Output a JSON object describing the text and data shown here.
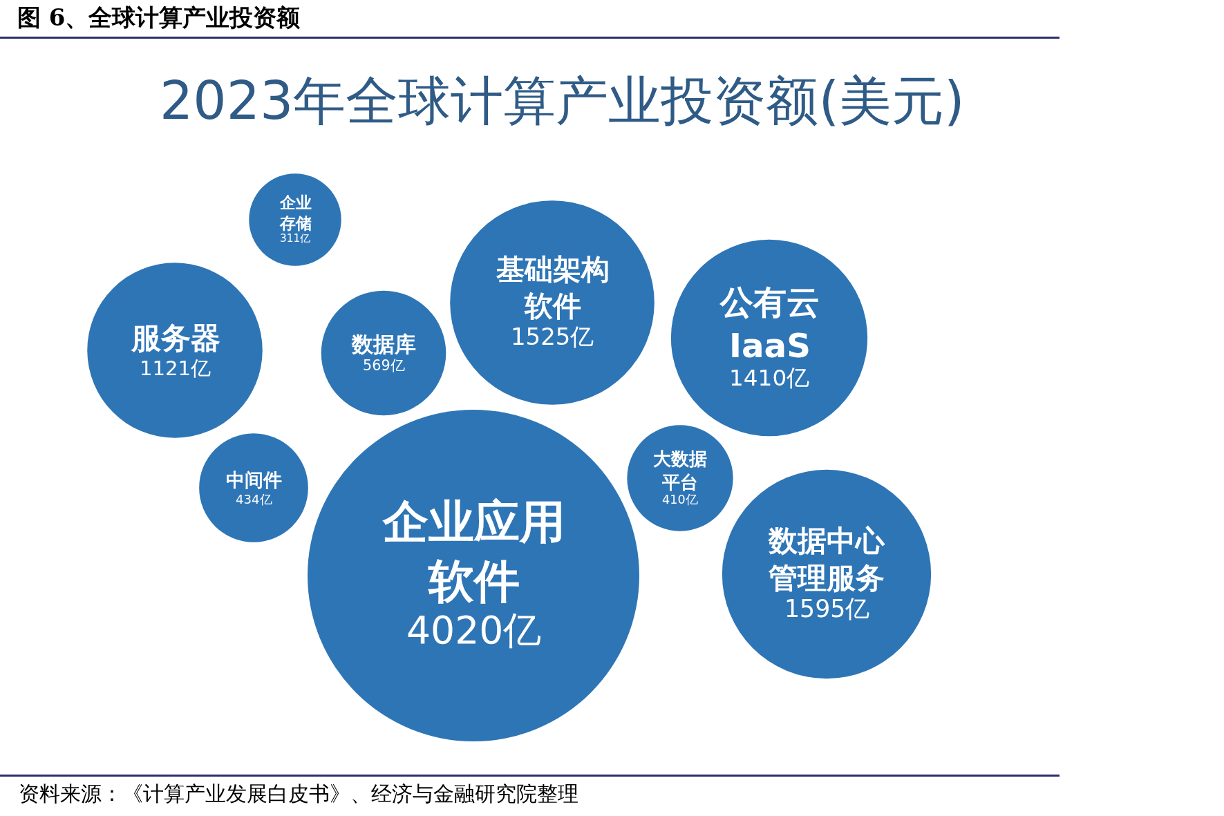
{
  "chart_data": {
    "type": "other",
    "title": "图 6、全球计算产业投资额",
    "subtitle": "2023年全球计算产业投资额(美元)",
    "categories": [
      "企业存储",
      "服务器",
      "数据库",
      "基础架构软件",
      "公有云 IaaS",
      "中间件",
      "大数据平台",
      "企业应用软件",
      "数据中心管理服务"
    ],
    "values": [
      311,
      1121,
      569,
      1525,
      1410,
      434,
      410,
      4020,
      1595
    ],
    "value_labels": [
      "311亿",
      "1121亿",
      "569亿",
      "1525亿",
      "1410亿",
      "434亿",
      "410亿",
      "4020亿",
      "1595亿"
    ],
    "color": "#2e75b6",
    "annotations": [
      "资料来源：《计算产业发展白皮书》、经济与金融研究院整理"
    ]
  }
}
